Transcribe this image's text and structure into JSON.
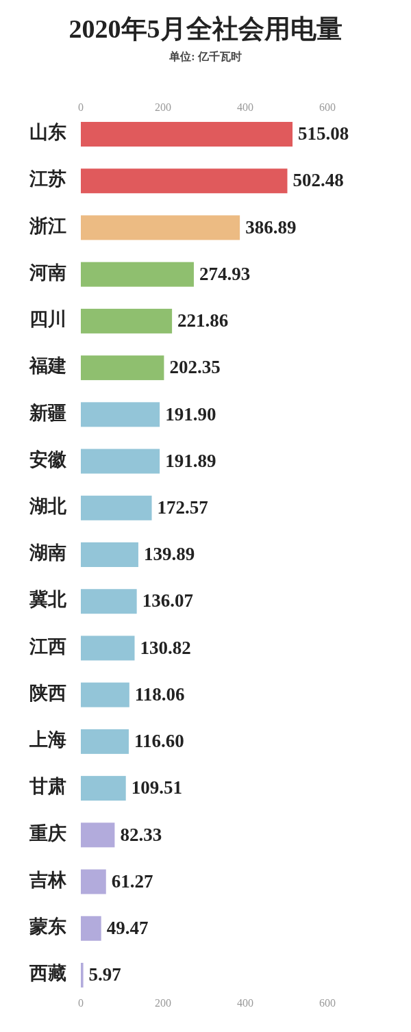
{
  "chart_data": {
    "type": "bar",
    "orientation": "horizontal",
    "title": "2020年5月全社会用电量",
    "subtitle": "单位: 亿千瓦时",
    "categories": [
      "山东",
      "江苏",
      "浙江",
      "河南",
      "四川",
      "福建",
      "新疆",
      "安徽",
      "湖北",
      "湖南",
      "冀北",
      "江西",
      "陕西",
      "上海",
      "甘肃",
      "重庆",
      "吉林",
      "蒙东",
      "西藏"
    ],
    "values": [
      515.08,
      502.48,
      386.89,
      274.93,
      221.86,
      202.35,
      191.9,
      191.89,
      172.57,
      139.89,
      136.07,
      130.82,
      118.06,
      116.6,
      109.51,
      82.33,
      61.27,
      49.47,
      5.97
    ],
    "value_labels": [
      "515.08",
      "502.48",
      "386.89",
      "274.93",
      "221.86",
      "202.35",
      "191.90",
      "191.89",
      "172.57",
      "139.89",
      "136.07",
      "130.82",
      "118.06",
      "116.60",
      "109.51",
      "82.33",
      "61.27",
      "49.47",
      "5.97"
    ],
    "colors": [
      "#e05a5c",
      "#e05a5c",
      "#ecbb83",
      "#8fbf6f",
      "#8fbf6f",
      "#8fbf6f",
      "#93c5d8",
      "#93c5d8",
      "#93c5d8",
      "#93c5d8",
      "#93c5d8",
      "#93c5d8",
      "#93c5d8",
      "#93c5d8",
      "#93c5d8",
      "#b2abdc",
      "#b2abdc",
      "#b2abdc",
      "#b2abdc"
    ],
    "xlim": [
      0,
      600
    ],
    "xticks": [
      0,
      200,
      400,
      600
    ],
    "x2lim": [
      0,
      600
    ],
    "x2ticks": [
      0,
      200,
      400,
      600
    ]
  }
}
